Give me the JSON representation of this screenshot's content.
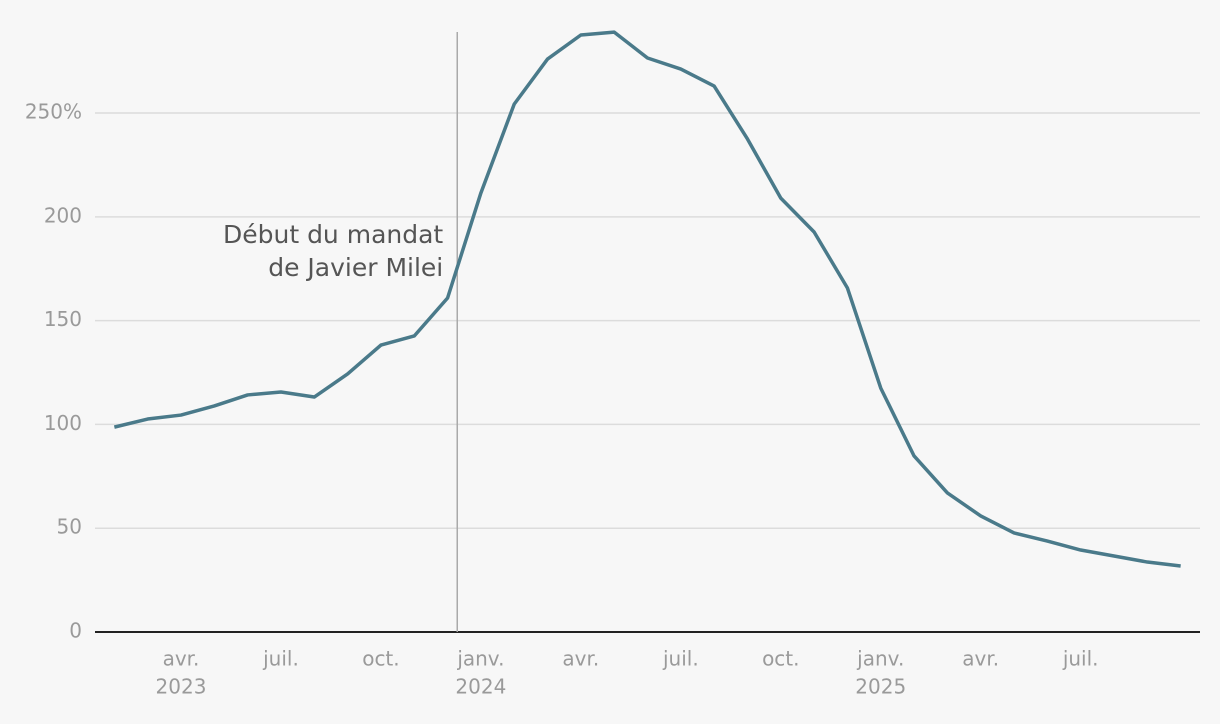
{
  "chart_data": {
    "type": "line",
    "x": [
      "2023-01",
      "2023-02",
      "2023-03",
      "2023-04",
      "2023-05",
      "2023-06",
      "2023-07",
      "2023-08",
      "2023-09",
      "2023-10",
      "2023-11",
      "2023-12",
      "2024-01",
      "2024-02",
      "2024-03",
      "2024-04",
      "2024-05",
      "2024-06",
      "2024-07",
      "2024-08",
      "2024-09",
      "2024-10",
      "2024-11",
      "2024-12",
      "2025-01",
      "2025-02",
      "2025-03",
      "2025-04",
      "2025-05",
      "2025-06",
      "2025-07",
      "2025-08",
      "2025-09"
    ],
    "series": [
      {
        "color": "#4a7a8a",
        "values": [
          98.7,
          102.6,
          104.5,
          108.9,
          114.2,
          115.6,
          113.2,
          124.3,
          138.2,
          142.6,
          160.9,
          211.5,
          254.3,
          276,
          287.6,
          289,
          276.5,
          271.2,
          263,
          237.5,
          209,
          192.7,
          165.7,
          117.5,
          84.8,
          67,
          55.9,
          47.7,
          43.8,
          39.5,
          36.6,
          33.7,
          31.8
        ]
      }
    ],
    "xlim": [
      "2023-01-14",
      "2025-10-19"
    ],
    "xticks": [
      {
        "value": "2023-04-01",
        "label": "avr.",
        "year": "2023"
      },
      {
        "value": "2023-07-01",
        "label": "juil."
      },
      {
        "value": "2023-10-01",
        "label": "oct."
      },
      {
        "value": "2024-01-01",
        "label": "janv.",
        "year": "2024"
      },
      {
        "value": "2024-04-01",
        "label": "avr."
      },
      {
        "value": "2024-07-01",
        "label": "juil."
      },
      {
        "value": "2024-10-01",
        "label": "oct."
      },
      {
        "value": "2025-01-01",
        "label": "janv.",
        "year": "2025"
      },
      {
        "value": "2025-04-01",
        "label": "avr."
      },
      {
        "value": "2025-07-01",
        "label": "juil."
      }
    ],
    "ylim": [
      0,
      290
    ],
    "yticks": [
      0,
      50,
      100,
      150,
      200,
      {
        "value": 250,
        "label": "250%"
      }
    ],
    "grid": true,
    "annotation": {
      "x": "2023-12-10",
      "text": [
        "Début du mandat",
        "de Javier Milei"
      ]
    }
  }
}
